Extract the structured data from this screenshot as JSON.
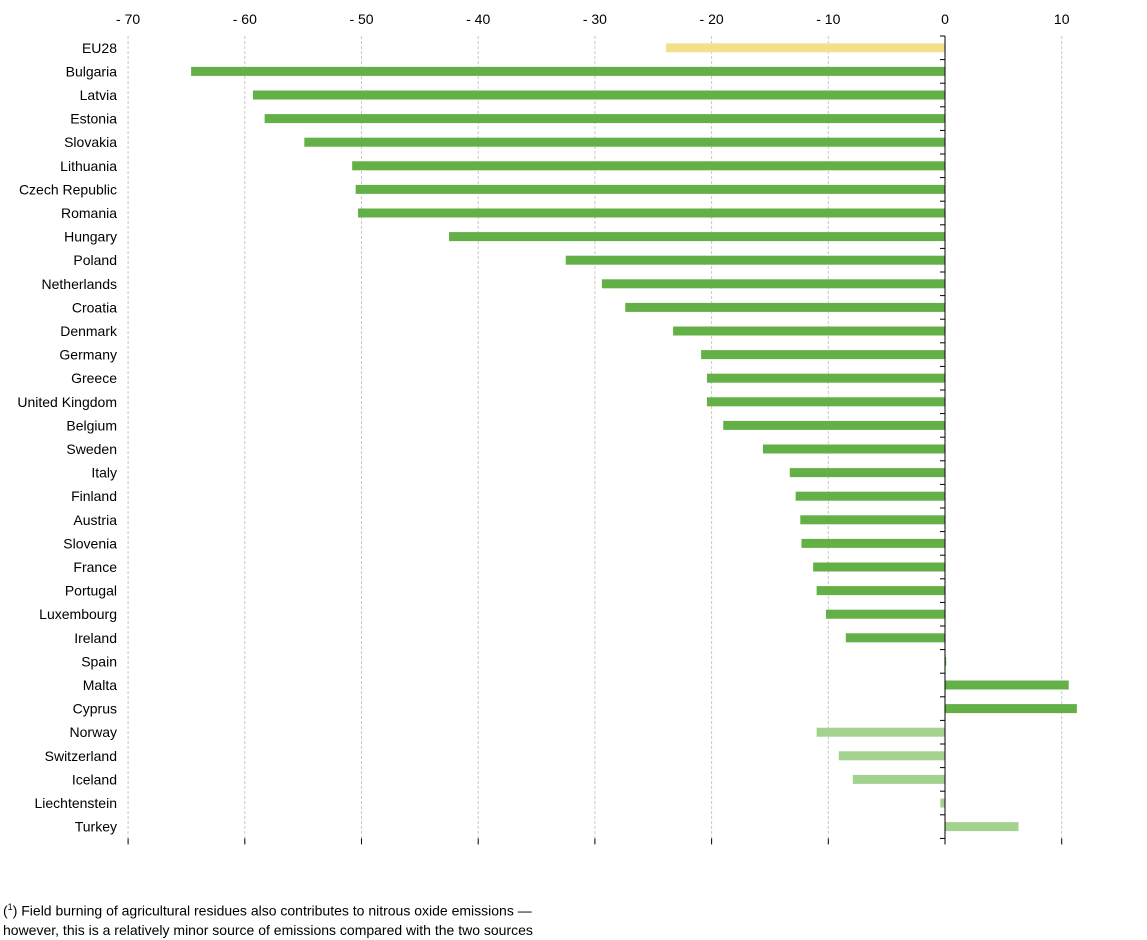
{
  "chart_data": {
    "type": "bar",
    "orientation": "horizontal",
    "categories": [
      "EU28",
      "Bulgaria",
      "Latvia",
      "Estonia",
      "Slovakia",
      "Lithuania",
      "Czech Republic",
      "Romania",
      "Hungary",
      "Poland",
      "Netherlands",
      "Croatia",
      "Denmark",
      "Germany",
      "Greece",
      "United Kingdom",
      "Belgium",
      "Sweden",
      "Italy",
      "Finland",
      "Austria",
      "Slovenia",
      "France",
      "Portugal",
      "Luxembourg",
      "Ireland",
      "Spain",
      "Malta",
      "Cyprus",
      "Norway",
      "Switzerland",
      "Iceland",
      "Liechtenstein",
      "Turkey"
    ],
    "values": [
      -23.9,
      -64.6,
      -59.3,
      -58.3,
      -54.9,
      -50.8,
      -50.5,
      -50.3,
      -42.5,
      -32.5,
      -29.4,
      -27.4,
      -23.3,
      -20.9,
      -20.4,
      -20.4,
      -19.0,
      -15.6,
      -13.3,
      -12.8,
      -12.4,
      -12.3,
      -11.3,
      -11.0,
      -10.2,
      -8.5,
      0.1,
      10.6,
      11.3,
      -11.0,
      -9.1,
      -7.9,
      -0.4,
      6.3
    ],
    "bar_colors": [
      "#f2e08a",
      "#62b046",
      "#62b046",
      "#62b046",
      "#62b046",
      "#62b046",
      "#62b046",
      "#62b046",
      "#62b046",
      "#62b046",
      "#62b046",
      "#62b046",
      "#62b046",
      "#62b046",
      "#62b046",
      "#62b046",
      "#62b046",
      "#62b046",
      "#62b046",
      "#62b046",
      "#62b046",
      "#62b046",
      "#62b046",
      "#62b046",
      "#62b046",
      "#62b046",
      "#62b046",
      "#62b046",
      "#62b046",
      "#a3d28f",
      "#a3d28f",
      "#a3d28f",
      "#a3d28f",
      "#a3d28f"
    ],
    "xlim": [
      -70,
      15
    ],
    "ticks": [
      -70,
      -60,
      -50,
      -40,
      -30,
      -20,
      -10,
      0,
      10
    ],
    "tick_labels": [
      "- 70",
      "- 60",
      "- 50",
      "- 40",
      "- 30",
      "- 20",
      "- 10",
      "0",
      "10"
    ],
    "grid": true,
    "title": "",
    "xlabel": "",
    "ylabel": ""
  },
  "footnote": {
    "marker": "1",
    "text": " Field burning of agricultural residues also contributes to nitrous oxide emissions — however, this is a relatively minor source of emissions compared with the two sources"
  }
}
